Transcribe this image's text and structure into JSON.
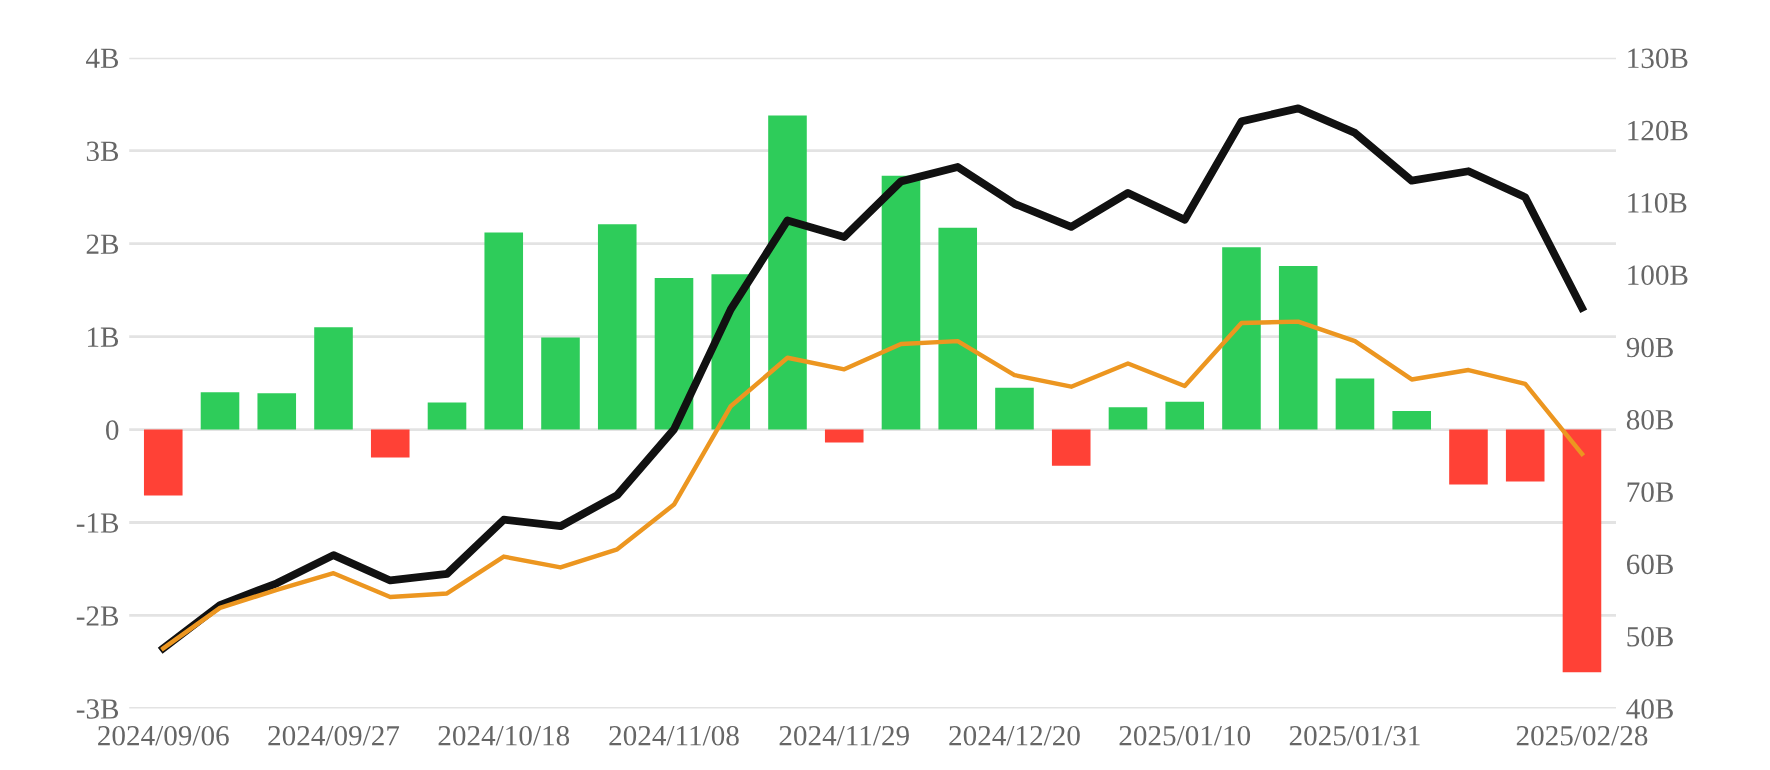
{
  "chart_data": {
    "type": "bar",
    "categories": [
      "2024/09/06",
      null,
      null,
      "2024/09/27",
      null,
      null,
      "2024/10/18",
      null,
      null,
      "2024/11/08",
      null,
      null,
      "2024/11/29",
      null,
      null,
      "2024/12/20",
      null,
      null,
      "2025/01/10",
      null,
      null,
      "2025/01/31",
      null,
      null,
      null,
      "2025/02/28"
    ],
    "series": [
      {
        "values": [
          -0.71,
          0.4,
          0.39,
          1.1,
          -0.3,
          0.29,
          2.12,
          0.99,
          2.21,
          1.63,
          1.67,
          3.38,
          -0.14,
          2.73,
          2.17,
          0.45,
          -0.39,
          0.24,
          0.3,
          1.96,
          1.76,
          0.55,
          0.2,
          -0.59,
          -0.56,
          -2.61
        ],
        "colors": [
          "#ff4136",
          "#2ecc5a",
          "#2ecc5a",
          "#2ecc5a",
          "#ff4136",
          "#2ecc5a",
          "#2ecc5a",
          "#2ecc5a",
          "#2ecc5a",
          "#2ecc5a",
          "#2ecc5a",
          "#2ecc5a",
          "#ff4136",
          "#2ecc5a",
          "#2ecc5a",
          "#2ecc5a",
          "#ff4136",
          "#2ecc5a",
          "#2ecc5a",
          "#2ecc5a",
          "#2ecc5a",
          "#2ecc5a",
          "#2ecc5a",
          "#ff4136",
          "#ff4136",
          "#ff4136"
        ]
      },
      {
        "type": "line",
        "axis": "y2",
        "color": "#111111",
        "values": [
          48.3,
          54.3,
          57.3,
          61.2,
          57.7,
          58.6,
          66.1,
          65.2,
          69.5,
          78.6,
          95.2,
          107.5,
          105.2,
          112.9,
          114.9,
          109.8,
          106.6,
          111.3,
          107.6,
          121.2,
          123.0,
          119.6,
          113.0,
          114.3,
          110.7,
          95.4
        ]
      },
      {
        "type": "line",
        "axis": "y2",
        "color": "#ec9620",
        "values": [
          48.3,
          53.9,
          56.4,
          58.7,
          55.4,
          55.9,
          61.0,
          59.5,
          62.0,
          68.2,
          81.8,
          88.5,
          86.9,
          90.4,
          90.8,
          86.1,
          84.5,
          87.7,
          84.6,
          93.3,
          93.5,
          90.8,
          85.5,
          86.8,
          84.9,
          75.2
        ]
      }
    ],
    "ylim": [
      -3,
      4
    ],
    "yticks": [
      {
        "value": -3,
        "label": "-3B"
      },
      {
        "value": -2,
        "label": "-2B"
      },
      {
        "value": -1,
        "label": "-1B"
      },
      0,
      {
        "value": 1,
        "label": "1B"
      },
      {
        "value": 2,
        "label": "2B"
      },
      {
        "value": 3,
        "label": "3B"
      },
      {
        "value": 4,
        "label": "4B"
      }
    ],
    "y2lim": [
      40,
      130
    ],
    "y2ticks": [
      {
        "value": 40,
        "label": "40B"
      },
      {
        "value": 50,
        "label": "50B"
      },
      {
        "value": 60,
        "label": "60B"
      },
      {
        "value": 70,
        "label": "70B"
      },
      {
        "value": 80,
        "label": "80B"
      },
      {
        "value": 90,
        "label": "90B"
      },
      {
        "value": 100,
        "label": "100B"
      },
      {
        "value": 110,
        "label": "110B"
      },
      {
        "value": 120,
        "label": "120B"
      },
      {
        "value": 130,
        "label": "130B"
      }
    ],
    "grid": "y",
    "marker": "none",
    "line_style": "solid"
  }
}
